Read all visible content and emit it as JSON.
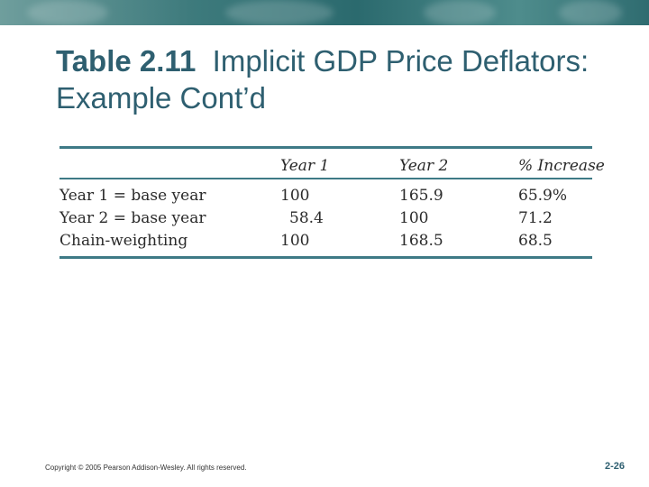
{
  "slide": {
    "title_bold": "Table 2.11",
    "title_rest": "Implicit GDP Price Deflators: Example Cont’d"
  },
  "table": {
    "headers": [
      "",
      "Year 1",
      "Year 2",
      "% Increase"
    ],
    "rows": [
      [
        "Year 1 = base year",
        "100",
        "165.9",
        "65.9%"
      ],
      [
        "Year 2 = base year",
        "58.4",
        "100",
        "71.2"
      ],
      [
        "Chain-weighting",
        "100",
        "168.5",
        "68.5"
      ]
    ]
  },
  "footer": {
    "copyright": "Copyright © 2005 Pearson Addison-Wesley. All rights reserved.",
    "page_number": "2-26"
  },
  "colors": {
    "title": "#2e5f70",
    "rule": "#3e7a86",
    "banner": "#3d7a7c"
  }
}
